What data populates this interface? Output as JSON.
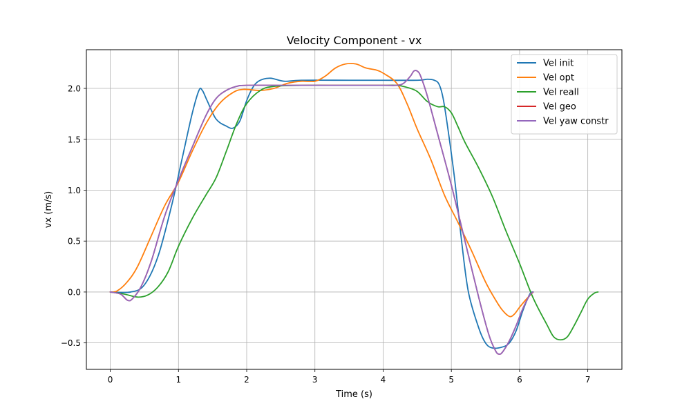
{
  "chart_data": {
    "type": "line",
    "title": "Velocity Component - vx",
    "xlabel": "Time (s)",
    "ylabel": "vx (m/s)",
    "xlim": [
      -0.35,
      7.5
    ],
    "ylim": [
      -0.76,
      2.38
    ],
    "xticks": [
      0,
      1,
      2,
      3,
      4,
      5,
      6,
      7
    ],
    "xtick_labels": [
      "0",
      "1",
      "2",
      "3",
      "4",
      "5",
      "6",
      "7"
    ],
    "yticks": [
      -0.5,
      0.0,
      0.5,
      1.0,
      1.5,
      2.0
    ],
    "ytick_labels": [
      "−0.5",
      "0.0",
      "0.5",
      "1.0",
      "1.5",
      "2.0"
    ],
    "grid": true,
    "legend_position": "top-right",
    "series": [
      {
        "name": "Vel init",
        "color": "#1f77b4",
        "points": [
          [
            0,
            0
          ],
          [
            0.3,
            0.0
          ],
          [
            0.5,
            0.07
          ],
          [
            0.7,
            0.35
          ],
          [
            0.9,
            0.85
          ],
          [
            1.05,
            1.3
          ],
          [
            1.2,
            1.75
          ],
          [
            1.3,
            1.98
          ],
          [
            1.35,
            1.98
          ],
          [
            1.42,
            1.88
          ],
          [
            1.55,
            1.7
          ],
          [
            1.7,
            1.63
          ],
          [
            1.8,
            1.61
          ],
          [
            1.9,
            1.68
          ],
          [
            2.0,
            1.88
          ],
          [
            2.1,
            2.02
          ],
          [
            2.2,
            2.08
          ],
          [
            2.35,
            2.1
          ],
          [
            2.55,
            2.07
          ],
          [
            2.8,
            2.08
          ],
          [
            3.5,
            2.08
          ],
          [
            4.0,
            2.08
          ],
          [
            4.5,
            2.08
          ],
          [
            4.65,
            2.09
          ],
          [
            4.75,
            2.08
          ],
          [
            4.82,
            2.04
          ],
          [
            4.88,
            1.9
          ],
          [
            4.95,
            1.6
          ],
          [
            5.05,
            1.1
          ],
          [
            5.15,
            0.5
          ],
          [
            5.25,
            0.0
          ],
          [
            5.4,
            -0.35
          ],
          [
            5.5,
            -0.5
          ],
          [
            5.6,
            -0.55
          ],
          [
            5.75,
            -0.54
          ],
          [
            5.85,
            -0.5
          ],
          [
            5.95,
            -0.38
          ],
          [
            6.05,
            -0.18
          ],
          [
            6.15,
            -0.02
          ],
          [
            6.2,
            0.0
          ]
        ]
      },
      {
        "name": "Vel opt",
        "color": "#ff7f0e",
        "points": [
          [
            0,
            0
          ],
          [
            0.1,
            0.01
          ],
          [
            0.25,
            0.1
          ],
          [
            0.4,
            0.25
          ],
          [
            0.6,
            0.55
          ],
          [
            0.8,
            0.85
          ],
          [
            1.0,
            1.08
          ],
          [
            1.2,
            1.38
          ],
          [
            1.4,
            1.65
          ],
          [
            1.6,
            1.85
          ],
          [
            1.8,
            1.96
          ],
          [
            1.95,
            1.99
          ],
          [
            2.2,
            1.98
          ],
          [
            2.4,
            2.0
          ],
          [
            2.6,
            2.05
          ],
          [
            2.8,
            2.07
          ],
          [
            3.0,
            2.07
          ],
          [
            3.15,
            2.12
          ],
          [
            3.3,
            2.2
          ],
          [
            3.45,
            2.24
          ],
          [
            3.6,
            2.24
          ],
          [
            3.75,
            2.2
          ],
          [
            3.9,
            2.18
          ],
          [
            4.0,
            2.15
          ],
          [
            4.2,
            2.05
          ],
          [
            4.35,
            1.85
          ],
          [
            4.5,
            1.6
          ],
          [
            4.7,
            1.3
          ],
          [
            4.9,
            0.95
          ],
          [
            5.1,
            0.68
          ],
          [
            5.3,
            0.4
          ],
          [
            5.5,
            0.1
          ],
          [
            5.65,
            -0.08
          ],
          [
            5.75,
            -0.18
          ],
          [
            5.85,
            -0.24
          ],
          [
            5.92,
            -0.22
          ],
          [
            6.0,
            -0.15
          ],
          [
            6.1,
            -0.07
          ],
          [
            6.2,
            0.0
          ]
        ]
      },
      {
        "name": "Vel reall",
        "color": "#2ca02c",
        "points": [
          [
            0,
            0
          ],
          [
            0.2,
            -0.02
          ],
          [
            0.4,
            -0.05
          ],
          [
            0.55,
            -0.03
          ],
          [
            0.7,
            0.05
          ],
          [
            0.85,
            0.2
          ],
          [
            1.0,
            0.45
          ],
          [
            1.2,
            0.72
          ],
          [
            1.4,
            0.95
          ],
          [
            1.55,
            1.12
          ],
          [
            1.7,
            1.38
          ],
          [
            1.85,
            1.65
          ],
          [
            2.0,
            1.85
          ],
          [
            2.2,
            1.98
          ],
          [
            2.4,
            2.02
          ],
          [
            2.8,
            2.03
          ],
          [
            3.2,
            2.03
          ],
          [
            3.6,
            2.03
          ],
          [
            4.0,
            2.03
          ],
          [
            4.2,
            2.03
          ],
          [
            4.35,
            2.01
          ],
          [
            4.5,
            1.97
          ],
          [
            4.65,
            1.87
          ],
          [
            4.8,
            1.82
          ],
          [
            4.9,
            1.82
          ],
          [
            5.0,
            1.76
          ],
          [
            5.1,
            1.62
          ],
          [
            5.2,
            1.47
          ],
          [
            5.4,
            1.22
          ],
          [
            5.6,
            0.94
          ],
          [
            5.8,
            0.6
          ],
          [
            6.0,
            0.28
          ],
          [
            6.2,
            -0.06
          ],
          [
            6.4,
            -0.32
          ],
          [
            6.5,
            -0.44
          ],
          [
            6.6,
            -0.47
          ],
          [
            6.7,
            -0.44
          ],
          [
            6.8,
            -0.33
          ],
          [
            6.9,
            -0.2
          ],
          [
            7.0,
            -0.07
          ],
          [
            7.1,
            -0.01
          ],
          [
            7.15,
            0.0
          ]
        ]
      },
      {
        "name": "Vel geo",
        "color": "#d62728",
        "points": [
          [
            0,
            0
          ],
          [
            0.15,
            -0.02
          ],
          [
            0.25,
            -0.08
          ],
          [
            0.32,
            -0.07
          ],
          [
            0.45,
            0.05
          ],
          [
            0.6,
            0.3
          ],
          [
            0.8,
            0.75
          ],
          [
            1.0,
            1.1
          ],
          [
            1.2,
            1.42
          ],
          [
            1.4,
            1.73
          ],
          [
            1.55,
            1.9
          ],
          [
            1.7,
            1.98
          ],
          [
            1.85,
            2.02
          ],
          [
            2.0,
            2.03
          ],
          [
            2.5,
            2.03
          ],
          [
            3.0,
            2.03
          ],
          [
            3.5,
            2.03
          ],
          [
            4.0,
            2.03
          ],
          [
            4.2,
            2.03
          ],
          [
            4.3,
            2.05
          ],
          [
            4.4,
            2.12
          ],
          [
            4.45,
            2.17
          ],
          [
            4.5,
            2.17
          ],
          [
            4.55,
            2.12
          ],
          [
            4.65,
            1.92
          ],
          [
            4.8,
            1.55
          ],
          [
            5.0,
            1.05
          ],
          [
            5.2,
            0.5
          ],
          [
            5.4,
            -0.05
          ],
          [
            5.55,
            -0.42
          ],
          [
            5.65,
            -0.58
          ],
          [
            5.7,
            -0.61
          ],
          [
            5.75,
            -0.59
          ],
          [
            5.85,
            -0.48
          ],
          [
            5.95,
            -0.33
          ],
          [
            6.05,
            -0.16
          ],
          [
            6.15,
            -0.03
          ],
          [
            6.2,
            0.0
          ]
        ]
      },
      {
        "name": "Vel yaw constr",
        "color": "#9467bd",
        "points": [
          [
            0,
            0
          ],
          [
            0.15,
            -0.02
          ],
          [
            0.25,
            -0.08
          ],
          [
            0.32,
            -0.07
          ],
          [
            0.45,
            0.05
          ],
          [
            0.6,
            0.3
          ],
          [
            0.8,
            0.75
          ],
          [
            1.0,
            1.1
          ],
          [
            1.2,
            1.42
          ],
          [
            1.4,
            1.73
          ],
          [
            1.55,
            1.9
          ],
          [
            1.7,
            1.98
          ],
          [
            1.85,
            2.02
          ],
          [
            2.0,
            2.03
          ],
          [
            2.5,
            2.03
          ],
          [
            3.0,
            2.03
          ],
          [
            3.5,
            2.03
          ],
          [
            4.0,
            2.03
          ],
          [
            4.2,
            2.03
          ],
          [
            4.3,
            2.05
          ],
          [
            4.4,
            2.12
          ],
          [
            4.45,
            2.17
          ],
          [
            4.5,
            2.17
          ],
          [
            4.55,
            2.12
          ],
          [
            4.65,
            1.92
          ],
          [
            4.8,
            1.55
          ],
          [
            5.0,
            1.05
          ],
          [
            5.2,
            0.5
          ],
          [
            5.4,
            -0.05
          ],
          [
            5.55,
            -0.42
          ],
          [
            5.65,
            -0.58
          ],
          [
            5.7,
            -0.61
          ],
          [
            5.75,
            -0.59
          ],
          [
            5.85,
            -0.48
          ],
          [
            5.95,
            -0.33
          ],
          [
            6.05,
            -0.16
          ],
          [
            6.15,
            -0.03
          ],
          [
            6.2,
            0.0
          ]
        ]
      }
    ]
  }
}
